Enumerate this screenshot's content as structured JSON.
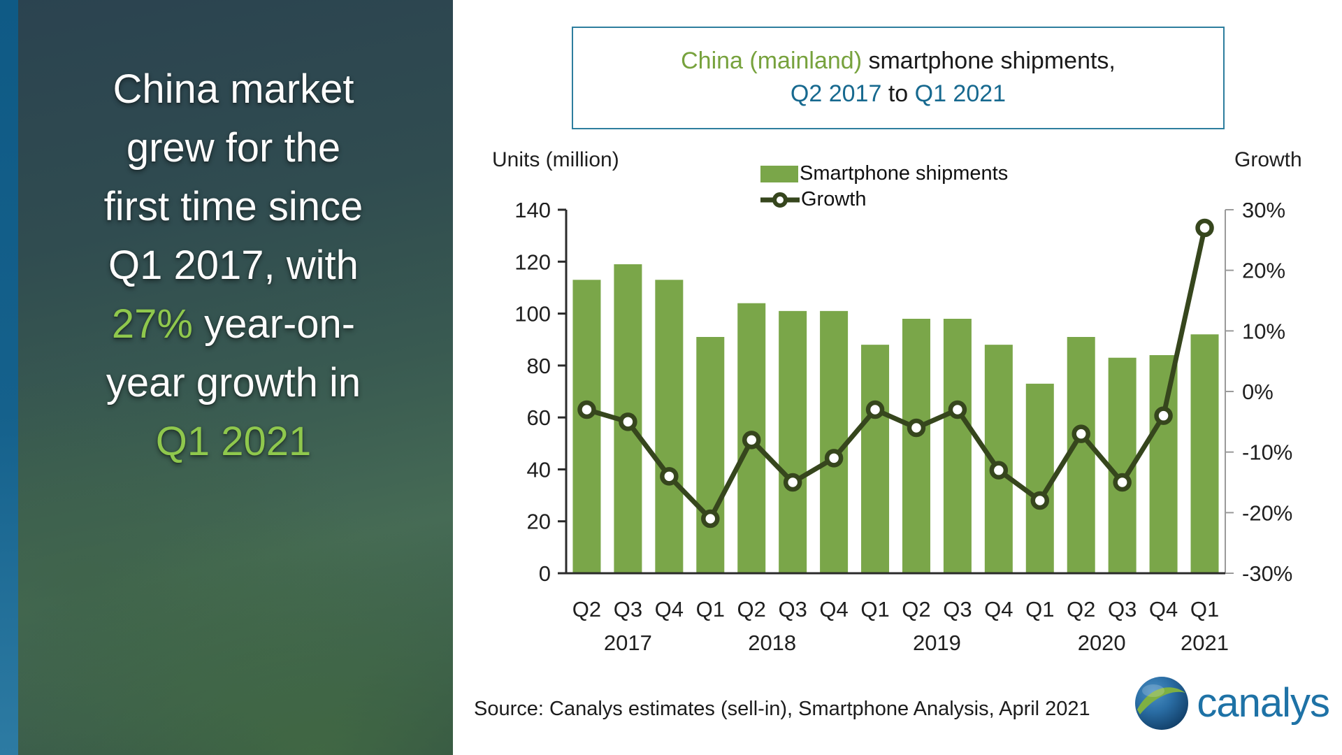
{
  "left_panel": {
    "lines": [
      {
        "a": "China market"
      },
      {
        "a": "grew for the"
      },
      {
        "a": "first time since"
      },
      {
        "a": "Q1 2017, with"
      },
      {
        "a": "27%",
        "b": " year-on-"
      },
      {
        "a": "year growth in"
      },
      {
        "a": "Q1 2021"
      }
    ]
  },
  "header": {
    "title_line1": [
      {
        "t": "China (mainland)"
      },
      {
        "t": " smartphone shipments,"
      }
    ],
    "title_line2": [
      {
        "t": "Q2 2017"
      },
      {
        "t": " to "
      },
      {
        "t": "Q1 2021"
      }
    ]
  },
  "legend": {
    "shipments_label": "Smartphone shipments",
    "growth_label": "Growth"
  },
  "footer": {
    "source": "Source: Canalys estimates (sell-in), Smartphone Analysis, April 2021",
    "logo_text": "canalys"
  },
  "colors": {
    "bar_green": "#7aa649",
    "line_dark_olive": "#36461d",
    "accent_green_text": "#8fc84d",
    "title_green": "#77a23d",
    "title_blue": "#17698f",
    "box_border_teal": "#2e7e9e",
    "left_strip_blue": "#15618c",
    "logo_blue": "#1e72a6"
  },
  "chart_data": {
    "type": "bar+line combo",
    "title": "China (mainland) smartphone shipments, Q2 2017 to Q1 2021",
    "quarters": [
      "Q2",
      "Q3",
      "Q4",
      "Q1",
      "Q2",
      "Q3",
      "Q4",
      "Q1",
      "Q2",
      "Q3",
      "Q4",
      "Q1",
      "Q2",
      "Q3",
      "Q4",
      "Q1"
    ],
    "categories": [
      "Q2 2017",
      "Q3 2017",
      "Q4 2017",
      "Q1 2018",
      "Q2 2018",
      "Q3 2018",
      "Q4 2018",
      "Q1 2019",
      "Q2 2019",
      "Q3 2019",
      "Q4 2019",
      "Q1 2020",
      "Q2 2020",
      "Q3 2020",
      "Q4 2020",
      "Q1 2021"
    ],
    "year_groups": [
      {
        "label": "2017",
        "from": 0,
        "to": 2
      },
      {
        "label": "2018",
        "from": 3,
        "to": 6
      },
      {
        "label": "2019",
        "from": 7,
        "to": 10
      },
      {
        "label": "2020",
        "from": 11,
        "to": 14
      },
      {
        "label": "2021",
        "from": 15,
        "to": 15
      }
    ],
    "series": [
      {
        "name": "Smartphone shipments",
        "type": "bar",
        "axis": "left",
        "values": [
          113,
          119,
          113,
          91,
          104,
          101,
          101,
          88,
          98,
          98,
          88,
          73,
          91,
          83,
          84,
          92
        ]
      },
      {
        "name": "Growth",
        "type": "line",
        "axis": "right",
        "values": [
          -3,
          -5,
          -14,
          -21,
          -8,
          -15,
          -11,
          -3,
          -6,
          -3,
          -13,
          -18,
          -7,
          -15,
          -4,
          27
        ]
      }
    ],
    "left_axis": {
      "label": "Units (million)",
      "min": 0,
      "max": 140,
      "ticks": [
        140,
        120,
        100,
        80,
        60,
        40,
        20,
        0
      ]
    },
    "right_axis": {
      "label": "Growth",
      "min": -30,
      "max": 30,
      "ticks": [
        "30%",
        "20%",
        "10%",
        "0%",
        "-10%",
        "-20%",
        "-30%"
      ]
    },
    "grid": false,
    "legend_position": "top-center"
  }
}
